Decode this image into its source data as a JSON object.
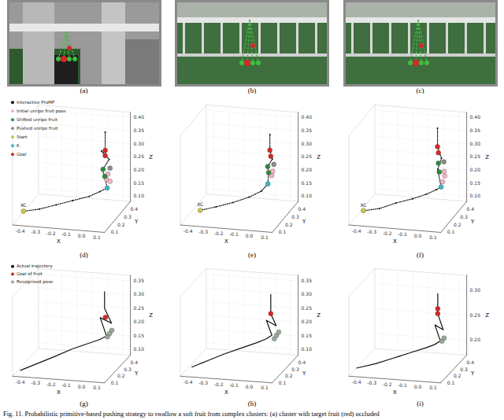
{
  "images": [
    {
      "label": "(a)"
    },
    {
      "label": "(b)"
    },
    {
      "label": "(c)"
    }
  ],
  "caption": "Fig. 11.  Probabilistic primitive-based pushing strategy to swallow a soft fruit from complex clusters: (a) cluster with target fruit (red) occluded",
  "chart_data": [
    {
      "type": "line3d",
      "label": "(d)",
      "xlabel": "X",
      "ylabel": "Y",
      "zlabel": "Z",
      "xlim": [
        -0.45,
        0.15
      ],
      "ylim": [
        0.05,
        0.45
      ],
      "zlim": [
        0.08,
        0.42
      ],
      "xticks": [
        -0.4,
        -0.3,
        -0.2,
        -0.1,
        {
          "value": 0,
          "label": "0.0"
        },
        0.1
      ],
      "yticks": [
        0.1,
        0.2,
        0.3,
        0.4
      ],
      "zticks": [
        {
          "value": 0.1,
          "label": "0.10"
        },
        {
          "value": 0.15,
          "label": "0.15"
        },
        {
          "value": 0.2,
          "label": "0.20"
        },
        {
          "value": 0.25,
          "label": "0.25"
        },
        {
          "value": 0.3,
          "label": "0.30"
        },
        {
          "value": 0.35,
          "label": "0.35"
        },
        {
          "value": 0.4,
          "label": "0.40"
        }
      ],
      "legend": "upper left",
      "annotations": [
        {
          "text": "XC",
          "x": -0.4,
          "y": 0.1,
          "z": 0.12
        }
      ],
      "series": [
        {
          "name": "Interactive ProMP",
          "color": "#111111",
          "marker": "point",
          "line_style": "dotted",
          "x": [
            -0.4,
            -0.3,
            -0.2,
            -0.1,
            0.0,
            0.06,
            0.1,
            0.08,
            0.06,
            0.1,
            0.05,
            0.07,
            0.07
          ],
          "y": [
            0.1,
            0.11,
            0.13,
            0.15,
            0.17,
            0.19,
            0.21,
            0.22,
            0.23,
            0.24,
            0.24,
            0.25,
            0.25
          ],
          "z": [
            0.12,
            0.13,
            0.145,
            0.16,
            0.175,
            0.19,
            0.2,
            0.24,
            0.26,
            0.3,
            0.33,
            0.31,
            0.4
          ]
        },
        {
          "name": "Initial unripe fruit pose",
          "color": "#f2b3c4",
          "marker": "circle",
          "line_style": "none",
          "x": [
            0.09,
            0.1,
            0.11
          ],
          "y": [
            0.22,
            0.22,
            0.23
          ],
          "z": [
            0.23,
            0.25,
            0.22
          ]
        },
        {
          "name": "Shifted unripe fruit",
          "color": "#2e8b3a",
          "marker": "circle",
          "line_style": "none",
          "x": [
            0.08,
            0.06
          ],
          "y": [
            0.22,
            0.24
          ],
          "z": [
            0.24,
            0.26
          ]
        },
        {
          "name": "Pushed unripe fruit",
          "color": "#8c8c8c",
          "marker": "circle",
          "line_style": "none",
          "x": [
            0.11
          ],
          "y": [
            0.23
          ],
          "z": [
            0.27
          ]
        },
        {
          "name": "Start",
          "color": "#c8c850",
          "marker": "circle",
          "line_style": "none",
          "x": [
            -0.4
          ],
          "y": [
            0.1
          ],
          "z": [
            0.12
          ]
        },
        {
          "name": "K",
          "color": "#40b8c0",
          "marker": "circle",
          "line_style": "none",
          "x": [
            0.1
          ],
          "y": [
            0.21
          ],
          "z": [
            0.2
          ]
        },
        {
          "name": "Goal",
          "color": "#d62728",
          "marker": "circle",
          "line_style": "none",
          "x": [
            0.07,
            0.07
          ],
          "y": [
            0.25,
            0.25
          ],
          "z": [
            0.31,
            0.33
          ]
        }
      ]
    },
    {
      "type": "line3d",
      "label": "(e)",
      "xlabel": "X",
      "ylabel": "Y",
      "zlabel": "Z",
      "xlim": [
        -0.45,
        0.15
      ],
      "ylim": [
        0.05,
        0.45
      ],
      "zlim": [
        0.08,
        0.42
      ],
      "xticks": [
        -0.4,
        -0.3,
        -0.2,
        -0.1,
        {
          "value": 0,
          "label": "0.0"
        },
        0.1
      ],
      "yticks": [
        0.1,
        0.2,
        0.3,
        0.4
      ],
      "zticks": [
        {
          "value": 0.1,
          "label": "0.10"
        },
        {
          "value": 0.15,
          "label": "0.15"
        },
        {
          "value": 0.2,
          "label": "0.20"
        },
        {
          "value": 0.25,
          "label": "0.25"
        },
        {
          "value": 0.3,
          "label": "0.30"
        },
        {
          "value": 0.35,
          "label": "0.35"
        },
        {
          "value": 0.4,
          "label": "0.40"
        }
      ],
      "annotations": [
        {
          "text": "XC",
          "x": -0.35,
          "y": 0.12,
          "z": 0.12
        }
      ],
      "series": [
        {
          "color": "#111111",
          "marker": "point",
          "line_style": "dotted",
          "x": [
            -0.35,
            -0.25,
            -0.15,
            -0.05,
            0.02,
            0.05,
            0.05,
            0.04,
            0.07,
            0.05,
            0.05
          ],
          "y": [
            0.12,
            0.13,
            0.15,
            0.17,
            0.19,
            0.22,
            0.23,
            0.24,
            0.24,
            0.25,
            0.25
          ],
          "z": [
            0.12,
            0.135,
            0.15,
            0.17,
            0.19,
            0.21,
            0.25,
            0.27,
            0.3,
            0.33,
            0.39
          ]
        },
        {
          "color": "#f2b3c4",
          "marker": "circle",
          "line_style": "none",
          "x": [
            0.07,
            0.08
          ],
          "y": [
            0.23,
            0.22
          ],
          "z": [
            0.24,
            0.26
          ]
        },
        {
          "color": "#2e8b3a",
          "marker": "circle",
          "line_style": "none",
          "x": [
            0.05,
            0.04
          ],
          "y": [
            0.23,
            0.24
          ],
          "z": [
            0.25,
            0.27
          ]
        },
        {
          "color": "#8c8c8c",
          "marker": "circle",
          "line_style": "none",
          "x": [
            0.08
          ],
          "y": [
            0.24
          ],
          "z": [
            0.28
          ]
        },
        {
          "color": "#c8c850",
          "marker": "circle",
          "line_style": "none",
          "x": [
            -0.35
          ],
          "y": [
            0.12
          ],
          "z": [
            0.12
          ]
        },
        {
          "color": "#40b8c0",
          "marker": "circle",
          "line_style": "none",
          "x": [
            0.05
          ],
          "y": [
            0.22
          ],
          "z": [
            0.21
          ]
        },
        {
          "color": "#d62728",
          "marker": "circle",
          "line_style": "none",
          "x": [
            0.06,
            0.05
          ],
          "y": [
            0.24,
            0.25
          ],
          "z": [
            0.31,
            0.33
          ]
        }
      ]
    },
    {
      "type": "line3d",
      "label": "(f)",
      "xlabel": "X",
      "ylabel": "Y",
      "zlabel": "Z",
      "xlim": [
        -0.45,
        0.15
      ],
      "ylim": [
        0.05,
        0.45
      ],
      "zlim": [
        0.08,
        0.42
      ],
      "xticks": [
        -0.4,
        -0.3,
        -0.2,
        -0.1,
        {
          "value": 0,
          "label": "0.0"
        },
        0.1
      ],
      "yticks": [
        0.1,
        0.2,
        0.3,
        0.4
      ],
      "zticks": [
        {
          "value": 0.1,
          "label": "0.10"
        },
        {
          "value": 0.15,
          "label": "0.15"
        },
        {
          "value": 0.2,
          "label": "0.20"
        },
        {
          "value": 0.25,
          "label": "0.25"
        },
        {
          "value": 0.3,
          "label": "0.30"
        },
        {
          "value": 0.35,
          "label": "0.35"
        },
        {
          "value": 0.4,
          "label": "0.40"
        }
      ],
      "annotations": [
        {
          "text": "XC",
          "x": -0.38,
          "y": 0.11,
          "z": 0.12
        }
      ],
      "series": [
        {
          "color": "#111111",
          "marker": "point",
          "line_style": "dotted",
          "x": [
            -0.38,
            -0.28,
            -0.18,
            -0.08,
            0.0,
            0.06,
            0.08,
            0.05,
            0.07,
            0.04,
            0.04
          ],
          "y": [
            0.11,
            0.12,
            0.14,
            0.16,
            0.18,
            0.2,
            0.22,
            0.24,
            0.25,
            0.26,
            0.26
          ],
          "z": [
            0.12,
            0.13,
            0.15,
            0.165,
            0.18,
            0.195,
            0.2,
            0.26,
            0.3,
            0.34,
            0.41
          ]
        },
        {
          "color": "#f2b3c4",
          "marker": "circle",
          "line_style": "none",
          "x": [
            0.09,
            0.1,
            0.1
          ],
          "y": [
            0.22,
            0.23,
            0.22
          ],
          "z": [
            0.22,
            0.24,
            0.26
          ]
        },
        {
          "color": "#2e8b3a",
          "marker": "circle",
          "line_style": "none",
          "x": [
            0.06,
            0.05
          ],
          "y": [
            0.24,
            0.25
          ],
          "z": [
            0.25,
            0.28
          ]
        },
        {
          "color": "#8c8c8c",
          "marker": "circle",
          "line_style": "none",
          "x": [
            0.09
          ],
          "y": [
            0.24
          ],
          "z": [
            0.29
          ]
        },
        {
          "color": "#c8c850",
          "marker": "circle",
          "line_style": "none",
          "x": [
            -0.38
          ],
          "y": [
            0.11
          ],
          "z": [
            0.12
          ]
        },
        {
          "color": "#40b8c0",
          "marker": "circle",
          "line_style": "none",
          "x": [
            0.08
          ],
          "y": [
            0.22
          ],
          "z": [
            0.2
          ]
        },
        {
          "color": "#d62728",
          "marker": "circle",
          "line_style": "none",
          "x": [
            0.05,
            0.04
          ],
          "y": [
            0.25,
            0.26
          ],
          "z": [
            0.32,
            0.34
          ]
        }
      ]
    },
    {
      "type": "line3d",
      "label": "(g)",
      "xlabel": "X",
      "ylabel": "Y",
      "zlabel": "Z",
      "xlim": [
        -0.45,
        0.15
      ],
      "ylim": [
        0.05,
        0.45
      ],
      "zlim": [
        0.08,
        0.37
      ],
      "xticks": [
        -0.4,
        -0.3,
        -0.2,
        -0.1,
        {
          "value": 0,
          "label": "0.0"
        },
        0.1
      ],
      "yticks": [
        0.1,
        0.2,
        0.3,
        0.4
      ],
      "zticks": [
        {
          "value": 0.1,
          "label": "0.10"
        },
        {
          "value": 0.15,
          "label": "0.15"
        },
        {
          "value": 0.2,
          "label": "0.20"
        },
        {
          "value": 0.25,
          "label": "0.25"
        },
        {
          "value": 0.3,
          "label": "0.30"
        },
        {
          "value": 0.35,
          "label": "0.35"
        }
      ],
      "legend": "upper left",
      "series": [
        {
          "name": "Actual trajectory",
          "color": "#111111",
          "marker": "none",
          "line_style": "solid",
          "x": [
            -0.42,
            -0.3,
            -0.2,
            -0.1,
            0.0,
            0.06,
            0.1,
            0.05,
            0.12,
            0.07,
            0.07
          ],
          "y": [
            0.1,
            0.11,
            0.12,
            0.14,
            0.16,
            0.18,
            0.2,
            0.22,
            0.23,
            0.24,
            0.24
          ],
          "z": [
            0.09,
            0.12,
            0.145,
            0.17,
            0.19,
            0.2,
            0.21,
            0.27,
            0.25,
            0.3,
            0.36
          ]
        },
        {
          "name": "Goal of fruit",
          "color": "#d62728",
          "marker": "circle",
          "line_style": "none",
          "x": [
            0.08
          ],
          "y": [
            0.23
          ],
          "z": [
            0.27
          ]
        },
        {
          "name": "Recognised pose",
          "color": "#9aa89a",
          "marker": "circle",
          "line_style": "none",
          "x": [
            0.11,
            0.12,
            0.13
          ],
          "y": [
            0.19,
            0.2,
            0.21
          ],
          "z": [
            0.21,
            0.22,
            0.23
          ]
        }
      ]
    },
    {
      "type": "line3d",
      "label": "(h)",
      "xlabel": "X",
      "ylabel": "Y",
      "zlabel": "Z",
      "xlim": [
        -0.45,
        0.15
      ],
      "ylim": [
        0.05,
        0.45
      ],
      "zlim": [
        0.08,
        0.37
      ],
      "xticks": [
        -0.4,
        -0.3,
        -0.2,
        -0.1,
        {
          "value": 0,
          "label": "0.0"
        },
        0.1
      ],
      "yticks": [
        0.1,
        0.2,
        0.3,
        0.4
      ],
      "zticks": [
        {
          "value": 0.1,
          "label": "0.10"
        },
        {
          "value": 0.15,
          "label": "0.15"
        },
        {
          "value": 0.2,
          "label": "0.20"
        },
        {
          "value": 0.25,
          "label": "0.25"
        },
        {
          "value": 0.3,
          "label": "0.30"
        },
        {
          "value": 0.35,
          "label": "0.35"
        }
      ],
      "series": [
        {
          "color": "#111111",
          "marker": "none",
          "line_style": "solid",
          "x": [
            -0.4,
            -0.3,
            -0.2,
            -0.1,
            0.0,
            0.05,
            0.08,
            0.04,
            0.1,
            0.06,
            0.06
          ],
          "y": [
            0.11,
            0.12,
            0.13,
            0.15,
            0.17,
            0.19,
            0.21,
            0.22,
            0.23,
            0.24,
            0.24
          ],
          "z": [
            0.1,
            0.125,
            0.15,
            0.17,
            0.19,
            0.2,
            0.21,
            0.26,
            0.24,
            0.28,
            0.35
          ]
        },
        {
          "color": "#d62728",
          "marker": "circle",
          "line_style": "none",
          "x": [
            0.06
          ],
          "y": [
            0.24
          ],
          "z": [
            0.28
          ]
        },
        {
          "color": "#9aa89a",
          "marker": "circle",
          "line_style": "none",
          "x": [
            0.1,
            0.11,
            0.12
          ],
          "y": [
            0.2,
            0.21,
            0.22
          ],
          "z": [
            0.2,
            0.21,
            0.22
          ]
        }
      ]
    },
    {
      "type": "line3d",
      "label": "(i)",
      "xlabel": "X",
      "ylabel": "Y",
      "zlabel": "Z",
      "xlim": [
        -0.45,
        0.15
      ],
      "ylim": [
        0.05,
        0.45
      ],
      "zlim": [
        0.17,
        0.33
      ],
      "xticks": [
        -0.4,
        -0.3,
        -0.2,
        -0.1,
        {
          "value": 0,
          "label": "0.0"
        },
        0.1
      ],
      "yticks": [
        0.1,
        0.2,
        0.3,
        0.4
      ],
      "zticks": [
        {
          "value": 0.2,
          "label": "0.20"
        },
        {
          "value": 0.25,
          "label": "0.25"
        },
        {
          "value": 0.3,
          "label": "0.30"
        }
      ],
      "series": [
        {
          "color": "#111111",
          "marker": "none",
          "line_style": "solid",
          "x": [
            -0.42,
            -0.3,
            -0.2,
            -0.1,
            0.0,
            0.05,
            0.08,
            0.04,
            0.09,
            0.05,
            0.05
          ],
          "y": [
            0.1,
            0.11,
            0.13,
            0.15,
            0.17,
            0.19,
            0.21,
            0.22,
            0.23,
            0.24,
            0.24
          ],
          "z": [
            0.18,
            0.19,
            0.2,
            0.21,
            0.22,
            0.225,
            0.23,
            0.26,
            0.25,
            0.28,
            0.32
          ]
        },
        {
          "color": "#d62728",
          "marker": "circle",
          "line_style": "none",
          "x": [
            0.05,
            0.05
          ],
          "y": [
            0.24,
            0.24
          ],
          "z": [
            0.28,
            0.29
          ]
        },
        {
          "color": "#9aa89a",
          "marker": "circle",
          "line_style": "none",
          "x": [
            0.09,
            0.1
          ],
          "y": [
            0.21,
            0.22
          ],
          "z": [
            0.23,
            0.235
          ]
        }
      ]
    }
  ]
}
